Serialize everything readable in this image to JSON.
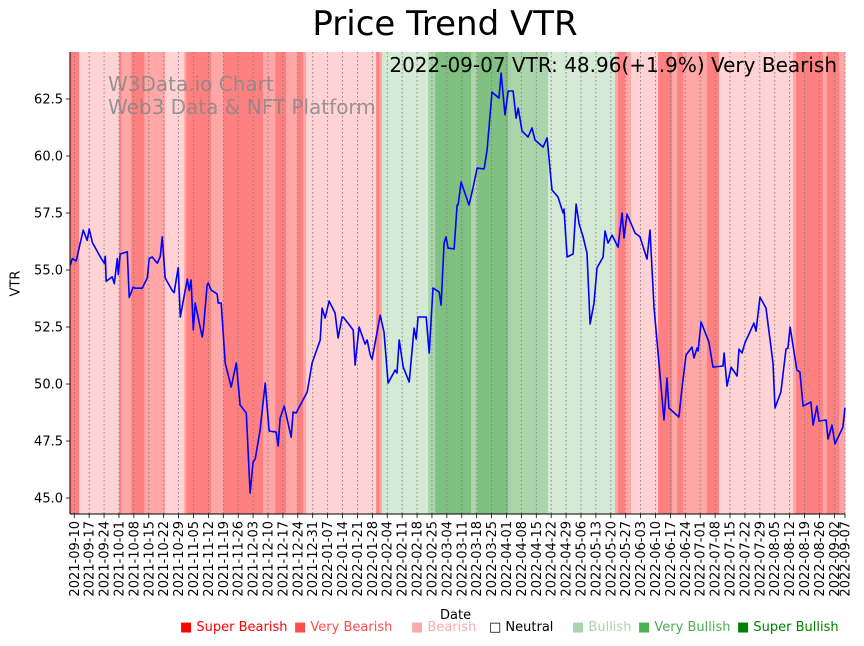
{
  "chart_data": {
    "type": "line",
    "title": "Price Trend VTR",
    "xlabel": "Date",
    "ylabel": "VTR",
    "annotation": "2022-09-07 VTR: 48.96(+1.9%) Very Bearish",
    "watermark": [
      "W3Data.io Chart",
      "Web3 Data & NFT Platform"
    ],
    "x_start_date": "2021-09-10",
    "x_range_days": [
      -2,
      362
    ],
    "ylim": [
      44.3,
      64.56
    ],
    "y_ticks": [
      45.0,
      47.5,
      50.0,
      52.5,
      55.0,
      57.5,
      60.0,
      62.5
    ],
    "x_tick_labels": [
      "2021-09-10",
      "2021-09-17",
      "2021-09-24",
      "2021-10-01",
      "2021-10-08",
      "2021-10-15",
      "2021-10-22",
      "2021-10-29",
      "2021-11-05",
      "2021-11-12",
      "2021-11-19",
      "2021-11-26",
      "2021-12-03",
      "2021-12-10",
      "2021-12-17",
      "2021-12-24",
      "2021-12-31",
      "2022-01-07",
      "2022-01-14",
      "2022-01-21",
      "2022-01-28",
      "2022-02-04",
      "2022-02-11",
      "2022-02-18",
      "2022-02-25",
      "2022-03-04",
      "2022-03-11",
      "2022-03-18",
      "2022-03-25",
      "2022-04-01",
      "2022-04-08",
      "2022-04-15",
      "2022-04-22",
      "2022-04-29",
      "2022-05-06",
      "2022-05-13",
      "2022-05-20",
      "2022-05-27",
      "2022-06-03",
      "2022-06-10",
      "2022-06-17",
      "2022-06-24",
      "2022-07-01",
      "2022-07-08",
      "2022-07-15",
      "2022-07-22",
      "2022-07-29",
      "2022-08-05",
      "2022-08-12",
      "2022-08-19",
      "2022-08-26",
      "2022-09-02",
      "2022-09-07"
    ],
    "x_tick_days": [
      0,
      7,
      14,
      21,
      28,
      35,
      42,
      49,
      56,
      63,
      70,
      77,
      84,
      91,
      98,
      105,
      112,
      119,
      126,
      133,
      140,
      147,
      154,
      161,
      168,
      175,
      182,
      189,
      196,
      203,
      210,
      217,
      224,
      231,
      238,
      245,
      252,
      259,
      266,
      273,
      280,
      287,
      294,
      301,
      308,
      315,
      322,
      329,
      336,
      343,
      350,
      357,
      362
    ],
    "grid": "x-dotted",
    "series": [
      {
        "name": "VTR",
        "color": "#0000ff",
        "points_day_value": [
          [
            -1.9,
            55.2
          ],
          [
            -0.9,
            55.5
          ],
          [
            0.9,
            55.4
          ],
          [
            4.2,
            56.75
          ],
          [
            6.1,
            56.3
          ],
          [
            7,
            56.8
          ],
          [
            8.5,
            56.2
          ],
          [
            12.7,
            55.5
          ],
          [
            14.1,
            55.3
          ],
          [
            14.6,
            55.6
          ],
          [
            15,
            54.5
          ],
          [
            17.8,
            54.7
          ],
          [
            18.8,
            54.4
          ],
          [
            20.2,
            55.5
          ],
          [
            20.7,
            54.8
          ],
          [
            21.6,
            55.7
          ],
          [
            24.9,
            55.8
          ],
          [
            25.8,
            53.8
          ],
          [
            27.7,
            54.25
          ],
          [
            28.6,
            54.2
          ],
          [
            31.9,
            54.2
          ],
          [
            34.3,
            54.65
          ],
          [
            35.2,
            55.5
          ],
          [
            36.6,
            55.57
          ],
          [
            39,
            55.3
          ],
          [
            40.4,
            55.6
          ],
          [
            41.3,
            56.45
          ],
          [
            42.7,
            54.65
          ],
          [
            46,
            54.1
          ],
          [
            46.9,
            54.0
          ],
          [
            48.8,
            55.1
          ],
          [
            49.8,
            52.94
          ],
          [
            53.1,
            54.6
          ],
          [
            54,
            54.1
          ],
          [
            54.9,
            54.56
          ],
          [
            55.9,
            52.37
          ],
          [
            56.8,
            53.55
          ],
          [
            60.1,
            52.06
          ],
          [
            60.6,
            52.37
          ],
          [
            62.4,
            54.34
          ],
          [
            62.9,
            54.43
          ],
          [
            64.3,
            54.12
          ],
          [
            67.1,
            53.95
          ],
          [
            67.6,
            53.55
          ],
          [
            69,
            53.55
          ],
          [
            70.9,
            50.92
          ],
          [
            73.7,
            49.87
          ],
          [
            76.1,
            50.92
          ],
          [
            77.9,
            49.08
          ],
          [
            80.8,
            48.73
          ],
          [
            82.6,
            45.22
          ],
          [
            84,
            46.58
          ],
          [
            85,
            46.71
          ],
          [
            87.3,
            47.98
          ],
          [
            89.7,
            50.04
          ],
          [
            91.5,
            47.94
          ],
          [
            94.8,
            47.89
          ],
          [
            95.8,
            47.28
          ],
          [
            96.7,
            48.5
          ],
          [
            98.6,
            49.03
          ],
          [
            101.9,
            47.67
          ],
          [
            102.8,
            48.77
          ],
          [
            104.2,
            48.73
          ],
          [
            109.4,
            49.65
          ],
          [
            111.7,
            50.92
          ],
          [
            115.5,
            51.93
          ],
          [
            116.4,
            53.33
          ],
          [
            117.8,
            52.89
          ],
          [
            119.7,
            53.64
          ],
          [
            122.5,
            53.11
          ],
          [
            123.9,
            52.02
          ],
          [
            125.8,
            52.94
          ],
          [
            126.3,
            52.94
          ],
          [
            131,
            52.37
          ],
          [
            131.9,
            50.83
          ],
          [
            133.8,
            52.5
          ],
          [
            136.6,
            51.75
          ],
          [
            137.6,
            51.93
          ],
          [
            139,
            51.27
          ],
          [
            139.9,
            51.09
          ],
          [
            143.7,
            53.02
          ],
          [
            145.5,
            52.28
          ],
          [
            147.4,
            50.04
          ],
          [
            150.7,
            50.61
          ],
          [
            151.6,
            50.48
          ],
          [
            152.6,
            51.93
          ],
          [
            154.5,
            50.74
          ],
          [
            157.3,
            50.09
          ],
          [
            159.6,
            52.45
          ],
          [
            160.6,
            51.97
          ],
          [
            161.5,
            52.94
          ],
          [
            165.3,
            52.94
          ],
          [
            166.7,
            51.36
          ],
          [
            168.5,
            54.21
          ],
          [
            171.4,
            54.03
          ],
          [
            172.3,
            53.46
          ],
          [
            173.7,
            56.18
          ],
          [
            174.6,
            56.45
          ],
          [
            175.6,
            55.96
          ],
          [
            178.4,
            55.92
          ],
          [
            179.8,
            57.85
          ],
          [
            180.3,
            57.85
          ],
          [
            181.7,
            58.86
          ],
          [
            185.4,
            57.85
          ],
          [
            187.3,
            58.6
          ],
          [
            189.2,
            59.47
          ],
          [
            192.5,
            59.43
          ],
          [
            193.9,
            60.26
          ],
          [
            196.2,
            62.8
          ],
          [
            199.5,
            62.54
          ],
          [
            200.5,
            63.64
          ],
          [
            202.3,
            61.8
          ],
          [
            203.8,
            62.85
          ],
          [
            206.1,
            62.85
          ],
          [
            207.5,
            61.66
          ],
          [
            208.5,
            62.1
          ],
          [
            210.3,
            61.1
          ],
          [
            213.1,
            60.83
          ],
          [
            215,
            61.23
          ],
          [
            216.4,
            60.7
          ],
          [
            220.2,
            60.39
          ],
          [
            222.1,
            60.79
          ],
          [
            224.4,
            58.51
          ],
          [
            227.2,
            58.2
          ],
          [
            229.6,
            57.5
          ],
          [
            230,
            57.67
          ],
          [
            231.5,
            55.57
          ],
          [
            234.3,
            55.7
          ],
          [
            235.7,
            57.89
          ],
          [
            237.1,
            57.02
          ],
          [
            239,
            56.45
          ],
          [
            240.8,
            55.74
          ],
          [
            242.3,
            52.63
          ],
          [
            244.1,
            53.55
          ],
          [
            245.5,
            55.09
          ],
          [
            248.4,
            55.57
          ],
          [
            249.3,
            56.71
          ],
          [
            250.7,
            56.18
          ],
          [
            252.6,
            56.53
          ],
          [
            255.4,
            56.0
          ],
          [
            257.3,
            57.5
          ],
          [
            258.2,
            56.4
          ],
          [
            259.6,
            57.45
          ],
          [
            263.4,
            56.62
          ],
          [
            265.7,
            56.45
          ],
          [
            269,
            55.48
          ],
          [
            270.4,
            56.75
          ],
          [
            272.3,
            53.37
          ],
          [
            277,
            48.42
          ],
          [
            278.4,
            50.26
          ],
          [
            279.3,
            48.95
          ],
          [
            284,
            48.55
          ],
          [
            285.4,
            49.78
          ],
          [
            287.3,
            51.27
          ],
          [
            290.1,
            51.62
          ],
          [
            291.1,
            51.14
          ],
          [
            292.5,
            51.58
          ],
          [
            293,
            51.45
          ],
          [
            294.4,
            52.72
          ],
          [
            298.1,
            51.84
          ],
          [
            300,
            50.74
          ],
          [
            304.7,
            50.79
          ],
          [
            305.2,
            51.36
          ],
          [
            306.6,
            49.91
          ],
          [
            308.5,
            50.74
          ],
          [
            311.3,
            50.35
          ],
          [
            312.2,
            51.53
          ],
          [
            313.6,
            51.36
          ],
          [
            315,
            51.8
          ],
          [
            319.2,
            52.67
          ],
          [
            320.2,
            52.32
          ],
          [
            322.1,
            53.81
          ],
          [
            324.9,
            53.33
          ],
          [
            328.2,
            50.92
          ],
          [
            329.1,
            48.95
          ],
          [
            331.9,
            49.65
          ],
          [
            334.3,
            51.53
          ],
          [
            335.2,
            51.58
          ],
          [
            336.2,
            52.5
          ],
          [
            339.4,
            50.61
          ],
          [
            340.8,
            50.53
          ],
          [
            342.3,
            49.03
          ],
          [
            346,
            49.21
          ],
          [
            347,
            48.2
          ],
          [
            348.8,
            49.03
          ],
          [
            349.8,
            48.38
          ],
          [
            353.1,
            48.42
          ],
          [
            354,
            47.59
          ],
          [
            355.9,
            48.2
          ],
          [
            357.3,
            47.37
          ],
          [
            361,
            48.11
          ],
          [
            362,
            48.96
          ]
        ]
      }
    ],
    "sentiment_levels": {
      "-3": {
        "label": "Super Bearish",
        "fill": "#ff8080",
        "text": "#ff0000",
        "marker": "■"
      },
      "-2": {
        "label": "Very Bearish",
        "fill": "#ffa6a6",
        "text": "#ff4d4d",
        "marker": "■"
      },
      "-1": {
        "label": "Bearish",
        "fill": "#ffd3d3",
        "text": "#ffaaaa",
        "marker": "■"
      },
      "0": {
        "label": "Neutral",
        "fill": "#ffffff",
        "text": "#000000",
        "marker": "□"
      },
      "1": {
        "label": "Bullish",
        "fill": "#d4ead4",
        "text": "#aad4aa",
        "marker": "■"
      },
      "2": {
        "label": "Very Bullish",
        "fill": "#aad5aa",
        "text": "#4caf50",
        "marker": "■"
      },
      "3": {
        "label": "Super Bullish",
        "fill": "#80c080",
        "text": "#008000",
        "marker": "■"
      }
    },
    "legend_order": [
      "-3",
      "-2",
      "-1",
      "0",
      "1",
      "2",
      "3"
    ],
    "legend_placement": "bottom",
    "sentiment_bands_day": [
      [
        -2,
        2.3,
        -3
      ],
      [
        2.3,
        21.1,
        -1
      ],
      [
        21.1,
        22.1,
        -3
      ],
      [
        22.1,
        26.8,
        -2
      ],
      [
        26.8,
        32.9,
        -3
      ],
      [
        32.9,
        42.7,
        -2
      ],
      [
        42.7,
        51.6,
        -1
      ],
      [
        51.6,
        52.6,
        -2
      ],
      [
        52.6,
        64.3,
        -3
      ],
      [
        64.3,
        70,
        -2
      ],
      [
        70,
        88.7,
        -3
      ],
      [
        88.7,
        94.4,
        -2
      ],
      [
        94.4,
        99.5,
        -3
      ],
      [
        99.5,
        104.7,
        -2
      ],
      [
        104.7,
        107.5,
        -3
      ],
      [
        107.5,
        108.9,
        -2
      ],
      [
        108.9,
        141.8,
        -1
      ],
      [
        141.8,
        143.2,
        -3
      ],
      [
        143.2,
        144.6,
        -2
      ],
      [
        144.6,
        166.2,
        1
      ],
      [
        166.2,
        169.5,
        2
      ],
      [
        169.5,
        186.4,
        3
      ],
      [
        186.4,
        189.2,
        2
      ],
      [
        189.2,
        203.8,
        3
      ],
      [
        203.8,
        222.5,
        2
      ],
      [
        222.5,
        254,
        1
      ],
      [
        254,
        255.4,
        -2
      ],
      [
        255.4,
        258.7,
        -3
      ],
      [
        258.7,
        261.5,
        -2
      ],
      [
        261.5,
        274.2,
        -1
      ],
      [
        274.2,
        280.8,
        -3
      ],
      [
        280.8,
        283.2,
        -2
      ],
      [
        283.2,
        286,
        -3
      ],
      [
        286,
        297.2,
        -2
      ],
      [
        297.2,
        302.8,
        -3
      ],
      [
        302.8,
        337.6,
        -1
      ],
      [
        337.6,
        339,
        -2
      ],
      [
        339,
        351.6,
        -3
      ],
      [
        351.6,
        353.5,
        -2
      ],
      [
        353.5,
        359.2,
        -3
      ],
      [
        359.2,
        362,
        -2
      ]
    ]
  }
}
